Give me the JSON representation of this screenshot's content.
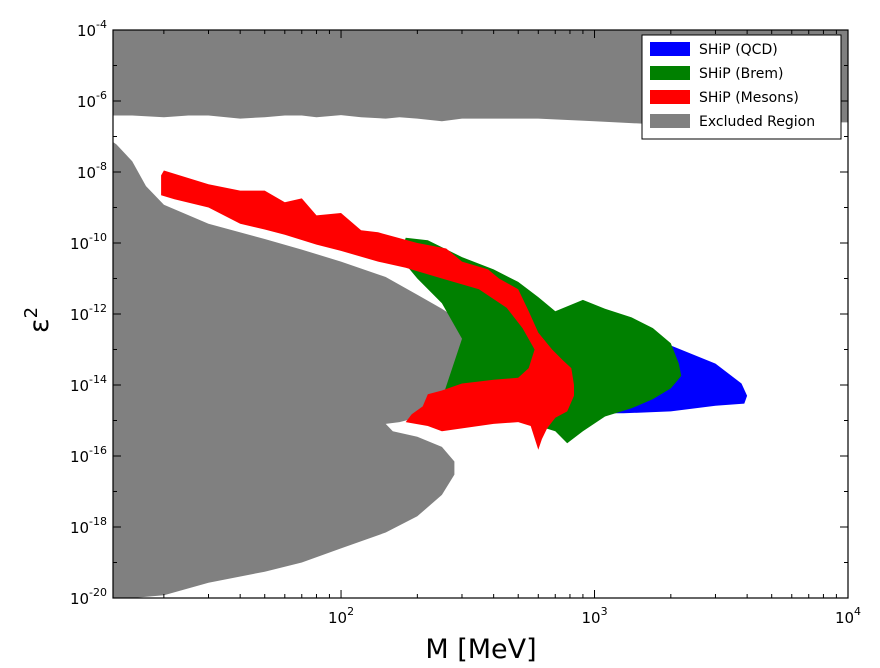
{
  "chart_data": {
    "type": "area",
    "title": "",
    "xlabel": "M [MeV]",
    "ylabel": "ε",
    "ylabel_superscript": "2",
    "x_scale": "log",
    "y_scale": "log",
    "xlim": [
      12.6,
      10000
    ],
    "ylim": [
      1e-20,
      0.0001
    ],
    "grid": false,
    "legend_position": "top-right",
    "x_ticks": [
      {
        "value": 100,
        "base": "10",
        "exp": "2"
      },
      {
        "value": 1000,
        "base": "10",
        "exp": "3"
      },
      {
        "value": 10000,
        "base": "10",
        "exp": "4"
      }
    ],
    "y_ticks": [
      {
        "value": 1e-20,
        "base": "10",
        "exp": "-20"
      },
      {
        "value": 1e-18,
        "base": "10",
        "exp": "-18"
      },
      {
        "value": 1e-16,
        "base": "10",
        "exp": "-16"
      },
      {
        "value": 1e-14,
        "base": "10",
        "exp": "-14"
      },
      {
        "value": 1e-12,
        "base": "10",
        "exp": "-12"
      },
      {
        "value": 1e-10,
        "base": "10",
        "exp": "-10"
      },
      {
        "value": 1e-08,
        "base": "10",
        "exp": "-8"
      },
      {
        "value": 1e-06,
        "base": "10",
        "exp": "-6"
      },
      {
        "value": 0.0001,
        "base": "10",
        "exp": "-4"
      }
    ],
    "series": [
      {
        "name": "Excluded Region",
        "color": "#808080",
        "polygons": [
          [
            [
              12.6,
              0.0001
            ],
            [
              10000,
              0.0001
            ],
            [
              10000,
              2.5e-07
            ],
            [
              9000,
              2.5e-07
            ],
            [
              7000,
              2.2e-07
            ],
            [
              5000,
              1.7e-07
            ],
            [
              3000,
              1.9e-07
            ],
            [
              2000,
              2.1e-07
            ],
            [
              1000,
              2.7e-07
            ],
            [
              600,
              3.2e-07
            ],
            [
              450,
              3.2e-07
            ],
            [
              300,
              3.2e-07
            ],
            [
              250,
              2.7e-07
            ],
            [
              200,
              3.2e-07
            ],
            [
              170,
              3.5e-07
            ],
            [
              150,
              3.2e-07
            ],
            [
              120,
              3.5e-07
            ],
            [
              100,
              4e-07
            ],
            [
              80,
              3.5e-07
            ],
            [
              70,
              3.9e-07
            ],
            [
              60,
              3.9e-07
            ],
            [
              50,
              3.5e-07
            ],
            [
              40,
              3.2e-07
            ],
            [
              30,
              3.9e-07
            ],
            [
              25,
              3.9e-07
            ],
            [
              20,
              3.5e-07
            ],
            [
              15,
              3.9e-07
            ],
            [
              12.6,
              3.9e-07
            ]
          ],
          [
            [
              12.6,
              1e-20
            ],
            [
              12.6,
              7e-08
            ],
            [
              13,
              6e-08
            ],
            [
              15,
              2e-08
            ],
            [
              17,
              4e-09
            ],
            [
              20,
              1.2e-09
            ],
            [
              30,
              3.5e-10
            ],
            [
              50,
              1.3e-10
            ],
            [
              70,
              6.5e-11
            ],
            [
              100,
              3e-11
            ],
            [
              150,
              1.1e-11
            ],
            [
              200,
              3.5e-12
            ],
            [
              250,
              1.4e-12
            ],
            [
              300,
              6e-13
            ],
            [
              400,
              1.6e-13
            ],
            [
              500,
              5e-14
            ],
            [
              560,
              2.8e-14
            ],
            [
              580,
              1.5e-14
            ],
            [
              560,
              1e-14
            ],
            [
              500,
              8e-15
            ],
            [
              400,
              6.8e-15
            ],
            [
              300,
              5e-15
            ],
            [
              250,
              4e-15
            ],
            [
              220,
              2.5e-15
            ],
            [
              200,
              1.5e-15
            ],
            [
              190,
              1.1e-15
            ],
            [
              170,
              9e-16
            ],
            [
              150,
              8e-16
            ],
            [
              160,
              5e-16
            ],
            [
              200,
              3.5e-16
            ],
            [
              250,
              1.8e-16
            ],
            [
              280,
              7e-17
            ],
            [
              280,
              3e-17
            ],
            [
              250,
              8e-18
            ],
            [
              200,
              2e-18
            ],
            [
              150,
              7e-19
            ],
            [
              100,
              2.5e-19
            ],
            [
              70,
              1e-19
            ],
            [
              50,
              5.5e-20
            ],
            [
              30,
              2.7e-20
            ],
            [
              20,
              1.2e-20
            ],
            [
              15,
              1e-20
            ]
          ]
        ]
      },
      {
        "name": "SHiP (QCD)",
        "color": "#0000ff",
        "polygons": [
          [
            [
              1500,
              2e-13
            ],
            [
              2000,
              1.3e-13
            ],
            [
              3000,
              4e-14
            ],
            [
              3800,
              1.1e-14
            ],
            [
              4000,
              5e-15
            ],
            [
              3900,
              3e-15
            ],
            [
              3000,
              2.6e-15
            ],
            [
              2000,
              1.8e-15
            ],
            [
              1300,
              1.6e-15
            ],
            [
              1000,
              1.6e-15
            ],
            [
              900,
              2e-15
            ],
            [
              1000,
              1e-14
            ],
            [
              1200,
              1e-13
            ]
          ]
        ]
      },
      {
        "name": "SHiP (Brem)",
        "color": "#008000",
        "polygons": [
          [
            [
              180,
              1.4e-10
            ],
            [
              220,
              1.2e-10
            ],
            [
              300,
              4e-11
            ],
            [
              400,
              1.8e-11
            ],
            [
              500,
              8e-12
            ],
            [
              600,
              3e-12
            ],
            [
              700,
              1.2e-12
            ],
            [
              900,
              2.5e-12
            ],
            [
              1100,
              1.4e-12
            ],
            [
              1400,
              8e-13
            ],
            [
              1700,
              4e-13
            ],
            [
              2000,
              1.5e-13
            ],
            [
              2150,
              4e-14
            ],
            [
              2200,
              1.8e-14
            ],
            [
              2000,
              8e-15
            ],
            [
              1700,
              4e-15
            ],
            [
              1400,
              2.2e-15
            ],
            [
              1100,
              1.3e-15
            ],
            [
              900,
              5e-16
            ],
            [
              780,
              2.3e-16
            ],
            [
              700,
              5e-16
            ],
            [
              600,
              7e-16
            ],
            [
              500,
              1e-15
            ],
            [
              400,
              1.5e-15
            ],
            [
              300,
              2e-15
            ],
            [
              250,
              4e-15
            ],
            [
              300,
              2e-13
            ],
            [
              250,
              2e-12
            ],
            [
              200,
              1e-11
            ],
            [
              170,
              4e-11
            ]
          ]
        ]
      },
      {
        "name": "SHiP (Mesons)",
        "color": "#ff0000",
        "polygons": [
          [
            [
              19.5,
              8e-09
            ],
            [
              20,
              1.1e-08
            ],
            [
              30,
              4.5e-09
            ],
            [
              40,
              3e-09
            ],
            [
              50,
              3e-09
            ],
            [
              60,
              1.4e-09
            ],
            [
              70,
              1.8e-09
            ],
            [
              80,
              6e-10
            ],
            [
              100,
              7e-10
            ],
            [
              120,
              2.3e-10
            ],
            [
              140,
              2e-10
            ],
            [
              200,
              1e-10
            ],
            [
              260,
              7e-11
            ],
            [
              300,
              3e-11
            ],
            [
              380,
              1.8e-11
            ],
            [
              420,
              1e-11
            ],
            [
              500,
              5e-12
            ],
            [
              550,
              1.2e-12
            ],
            [
              600,
              3e-13
            ],
            [
              680,
              1e-13
            ],
            [
              750,
              5e-14
            ],
            [
              810,
              3e-14
            ],
            [
              830,
              1e-14
            ],
            [
              830,
              5e-15
            ],
            [
              780,
              1.8e-15
            ],
            [
              700,
              1.2e-15
            ],
            [
              650,
              6e-16
            ],
            [
              620,
              3e-16
            ],
            [
              600,
              1.5e-16
            ],
            [
              560,
              7e-16
            ],
            [
              500,
              9e-16
            ],
            [
              400,
              8e-16
            ],
            [
              300,
              6e-16
            ],
            [
              250,
              5e-16
            ],
            [
              220,
              7e-16
            ],
            [
              180,
              9e-16
            ],
            [
              160,
              1.1e-15
            ],
            [
              180,
              9e-16
            ],
            [
              190,
              1.5e-15
            ],
            [
              210,
              2.5e-15
            ],
            [
              220,
              5.5e-15
            ],
            [
              250,
              7e-15
            ],
            [
              300,
              1.1e-14
            ],
            [
              400,
              1.4e-14
            ],
            [
              500,
              1.6e-14
            ],
            [
              550,
              3e-14
            ],
            [
              580,
              1e-13
            ],
            [
              520,
              4e-13
            ],
            [
              450,
              1.5e-12
            ],
            [
              350,
              5e-12
            ],
            [
              250,
              1e-11
            ],
            [
              180,
              2e-11
            ],
            [
              140,
              3e-11
            ],
            [
              100,
              6e-11
            ],
            [
              80,
              9e-11
            ],
            [
              60,
              1.7e-10
            ],
            [
              50,
              2.4e-10
            ],
            [
              40,
              3.5e-10
            ],
            [
              30,
              1e-09
            ],
            [
              22,
              1.7e-09
            ],
            [
              19.5,
              2.2e-09
            ]
          ]
        ]
      }
    ],
    "legend": [
      {
        "name": "SHiP (QCD)",
        "color": "#0000ff"
      },
      {
        "name": "SHiP (Brem)",
        "color": "#008000"
      },
      {
        "name": "SHiP (Mesons)",
        "color": "#ff0000"
      },
      {
        "name": "Excluded Region",
        "color": "#808080"
      }
    ]
  }
}
